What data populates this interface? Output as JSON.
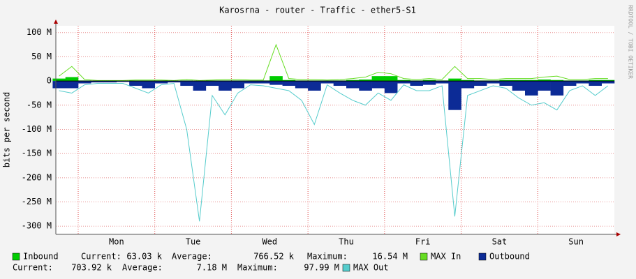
{
  "chart_data": {
    "type": "area",
    "title": "Karosrna - router - Traffic - ether5-S1",
    "y_label": "bits per second",
    "watermark": "RRDTOOL / TOBI OETIKER",
    "categories": [
      "Mon",
      "Tue",
      "Wed",
      "Thu",
      "Fri",
      "Sat",
      "Sun"
    ],
    "xlim": [
      -7,
      168
    ],
    "x": [
      -6,
      -2,
      2,
      6,
      10,
      14,
      18,
      22,
      26,
      30,
      34,
      38,
      42,
      46,
      50,
      54,
      58,
      62,
      66,
      70,
      74,
      78,
      82,
      86,
      90,
      94,
      98,
      102,
      106,
      110,
      114,
      118,
      122,
      126,
      130,
      134,
      138,
      142,
      146,
      150,
      154,
      158,
      162,
      166
    ],
    "ylim": [
      -317,
      114
    ],
    "yticks": [
      {
        "value": 100,
        "label": "100 M"
      },
      {
        "value": 50,
        "label": "50 M"
      },
      0,
      {
        "value": -50,
        "label": "-50 M"
      },
      {
        "value": -100,
        "label": "-100 M"
      },
      {
        "value": -150,
        "label": "-150 M"
      },
      {
        "value": -200,
        "label": "-200 M"
      },
      {
        "value": -250,
        "label": "-250 M"
      },
      {
        "value": -300,
        "label": "-300 M"
      }
    ],
    "grid": true,
    "series": [
      {
        "name": "Inbound",
        "style": "area",
        "color": "#00cc00",
        "values": [
          5,
          8,
          1,
          0,
          0,
          0,
          1,
          1,
          1,
          0,
          1,
          0,
          1,
          1,
          1,
          1,
          1,
          10,
          2,
          1,
          1,
          1,
          1,
          2,
          3,
          10,
          10,
          2,
          1,
          2,
          1,
          5,
          2,
          1,
          1,
          2,
          2,
          2,
          3,
          2,
          1,
          1,
          2,
          2
        ]
      },
      {
        "name": "MAX In",
        "style": "line",
        "color": "#66dd22",
        "values": [
          10,
          30,
          3,
          1,
          1,
          1,
          2,
          2,
          2,
          1,
          3,
          1,
          2,
          3,
          3,
          2,
          2,
          75,
          5,
          3,
          3,
          2,
          3,
          5,
          8,
          18,
          15,
          5,
          3,
          5,
          3,
          30,
          5,
          5,
          3,
          5,
          5,
          5,
          8,
          10,
          3,
          3,
          5,
          5
        ]
      },
      {
        "name": "Outbound",
        "style": "area",
        "color": "#0c2b96",
        "values": [
          -15,
          -15,
          -5,
          -3,
          -3,
          -2,
          -10,
          -15,
          -5,
          -3,
          -10,
          -20,
          -10,
          -20,
          -15,
          -5,
          -5,
          -8,
          -10,
          -15,
          -20,
          -5,
          -10,
          -15,
          -20,
          -15,
          -25,
          -5,
          -10,
          -8,
          -5,
          -60,
          -15,
          -10,
          -5,
          -10,
          -20,
          -30,
          -20,
          -30,
          -10,
          -5,
          -10,
          -5
        ]
      },
      {
        "name": "MAX Out",
        "style": "line",
        "color": "#55cccc",
        "values": [
          -20,
          -25,
          -8,
          -5,
          -5,
          -5,
          -15,
          -25,
          -8,
          -5,
          -100,
          -290,
          -30,
          -70,
          -25,
          -8,
          -10,
          -15,
          -20,
          -40,
          -90,
          -8,
          -25,
          -40,
          -50,
          -25,
          -40,
          -8,
          -20,
          -20,
          -10,
          -280,
          -30,
          -20,
          -10,
          -15,
          -35,
          -50,
          -45,
          -60,
          -20,
          -10,
          -30,
          -10
        ]
      }
    ],
    "stats": [
      [
        {
          "label": "Current:",
          "value": "63.03 k"
        },
        {
          "label": "Average:",
          "value": "766.52 k"
        },
        {
          "label": "Maximum:",
          "value": "16.54 M"
        }
      ],
      [
        {
          "label": "Current:",
          "value": "703.92 k"
        },
        {
          "label": "Average:",
          "value": "7.18 M"
        },
        {
          "label": "Maximum:",
          "value": "97.99 M"
        }
      ]
    ]
  }
}
